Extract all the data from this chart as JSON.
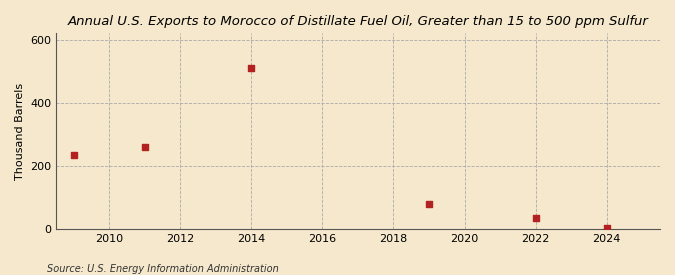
{
  "title": "Annual U.S. Exports to Morocco of Distillate Fuel Oil, Greater than 15 to 500 ppm Sulfur",
  "ylabel": "Thousand Barrels",
  "source": "Source: U.S. Energy Information Administration",
  "background_color": "#f5e8cc",
  "plot_background_color": "#f5e8cc",
  "data_points": [
    {
      "year": 2009,
      "value": 235
    },
    {
      "year": 2011,
      "value": 260
    },
    {
      "year": 2014,
      "value": 510
    },
    {
      "year": 2019,
      "value": 80
    },
    {
      "year": 2022,
      "value": 35
    },
    {
      "year": 2024,
      "value": 5
    }
  ],
  "marker_color": "#b22222",
  "marker_size": 4,
  "xlim": [
    2008.5,
    2025.5
  ],
  "ylim": [
    0,
    620
  ],
  "yticks": [
    0,
    200,
    400,
    600
  ],
  "xticks": [
    2010,
    2012,
    2014,
    2016,
    2018,
    2020,
    2022,
    2024
  ],
  "grid_color": "#aaaaaa",
  "title_fontsize": 9.5,
  "axis_fontsize": 8,
  "source_fontsize": 7,
  "ylabel_fontsize": 8
}
